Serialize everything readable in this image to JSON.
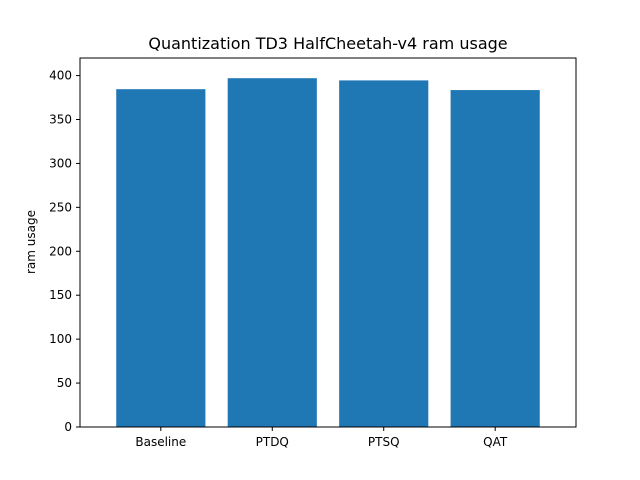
{
  "chart_data": {
    "type": "bar",
    "title": "Quantization TD3 HalfCheetah-v4 ram usage",
    "xlabel": "",
    "ylabel": "ram usage",
    "categories": [
      "Baseline",
      "PTDQ",
      "PTSQ",
      "QAT"
    ],
    "values": [
      384.5,
      397.0,
      394.5,
      383.5
    ],
    "ylim": [
      0,
      420
    ],
    "yticks": [
      0,
      50,
      100,
      150,
      200,
      250,
      300,
      350,
      400
    ],
    "grid": false,
    "bar_color": "#1f77b4"
  }
}
